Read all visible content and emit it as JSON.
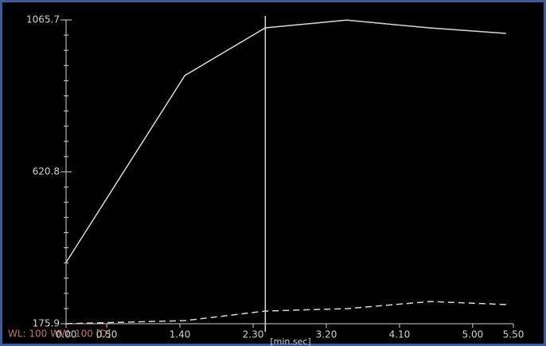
{
  "chart_data": {
    "type": "line",
    "xlabel": "[min.sec]",
    "annotation": "WL: 100 WW: 100 [D]",
    "x": [
      0,
      1.46,
      2.45,
      3.45,
      4.48,
      5.41
    ],
    "series": [
      {
        "color": "#d8d8d8",
        "dash": false,
        "values": [
          355.3,
          902.7,
          1042.4,
          1065,
          1042,
          1026
        ]
      },
      {
        "color": "#d8d8d8",
        "dash": true,
        "values": [
          176,
          185,
          213,
          220,
          241,
          232
        ]
      }
    ],
    "cursor_x": 2.45,
    "xlim": [
      0,
      5.5
    ],
    "xticks": [
      {
        "value": 0,
        "label": "0.00"
      },
      {
        "value": 0.5,
        "label": "0.50"
      },
      {
        "value": 1.4,
        "label": "1.40"
      },
      {
        "value": 2.3,
        "label": "2.30"
      },
      {
        "value": 3.2,
        "label": "3.20"
      },
      {
        "value": 4.1,
        "label": "4.10"
      },
      {
        "value": 5,
        "label": "5.00"
      },
      {
        "value": 5.5,
        "label": "5.50"
      }
    ],
    "ylim": [
      175.9,
      1065.7
    ],
    "yticks": [
      175.9,
      620.8,
      1065.7
    ]
  }
}
